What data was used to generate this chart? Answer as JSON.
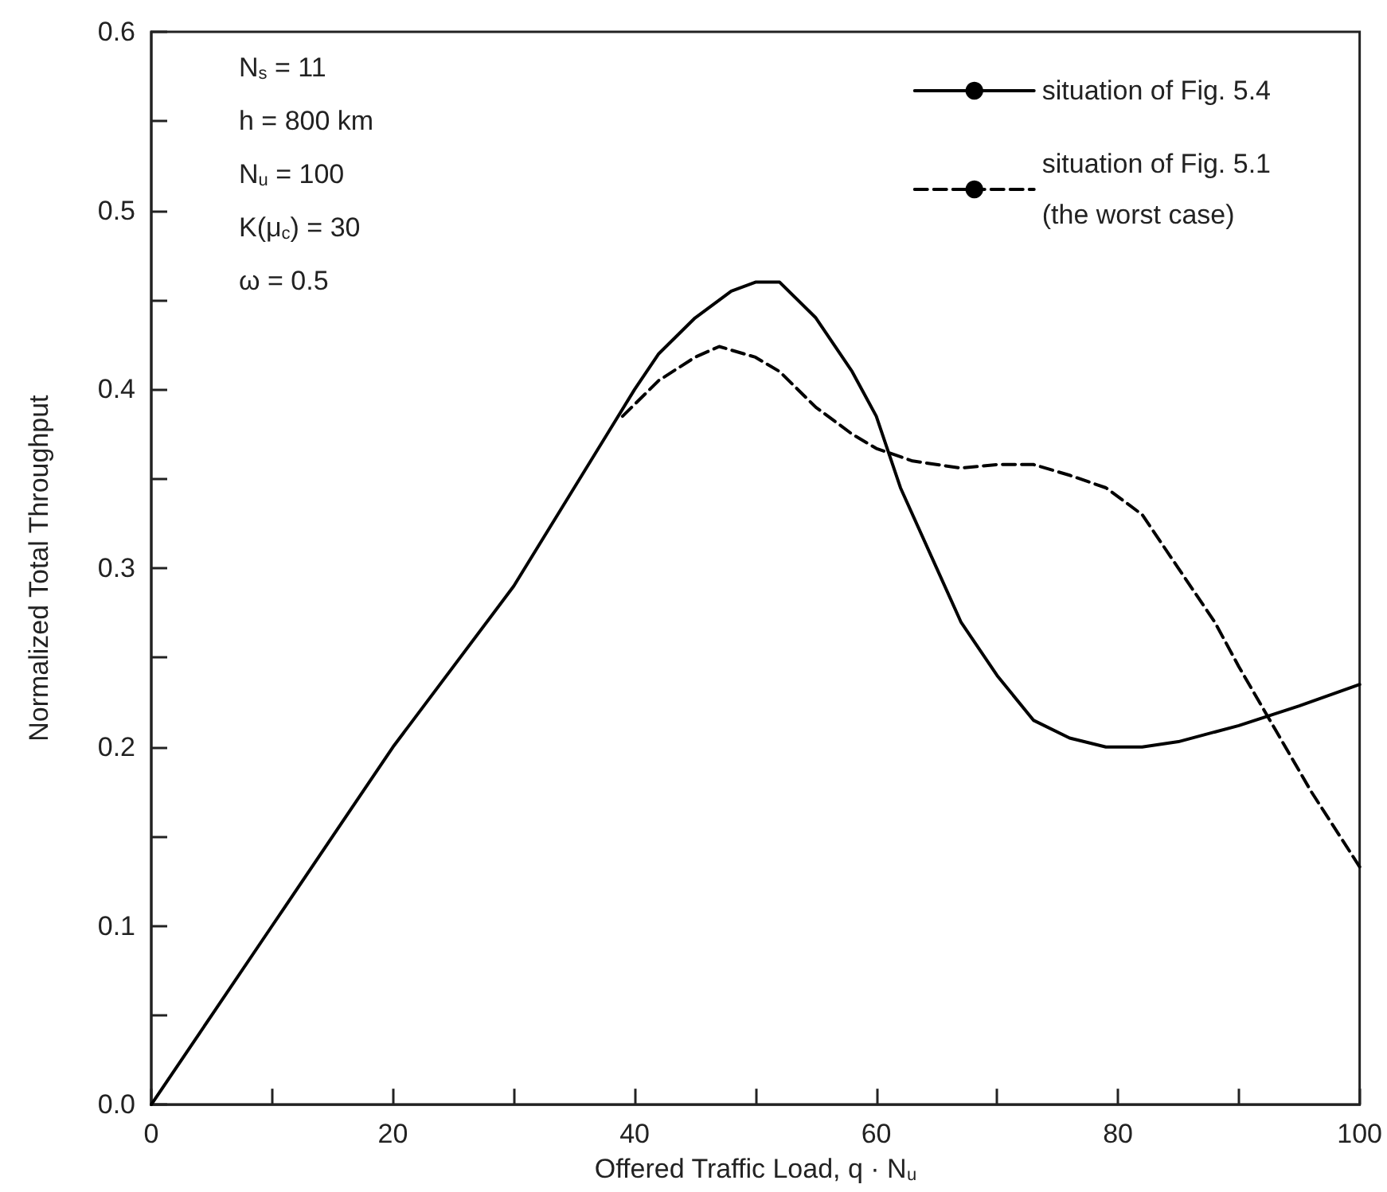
{
  "chart_data": {
    "type": "line",
    "xlabel": "Offered Traffic Load, q · N$_{u}$",
    "ylabel": "Normalized Total Throughput",
    "annotations": [
      "N$_{s}$ = 11",
      "h = 800 km",
      "N$_{u}$ = 100",
      "K(μ$_{c}$) = 30",
      "ω = 0.5"
    ],
    "series": [
      {
        "name": "situation of Fig. 5.4",
        "color": "#000000",
        "line_style": "solid",
        "x": [
          0,
          4,
          10,
          11,
          20,
          30,
          40,
          42,
          45,
          48,
          50,
          52,
          55,
          58,
          60,
          62,
          65,
          67,
          70,
          73,
          76,
          79,
          82,
          85,
          90,
          95,
          100
        ],
        "values": [
          0,
          0.04,
          0.1,
          0.11,
          0.2,
          0.29,
          0.4,
          0.42,
          0.44,
          0.455,
          0.46,
          0.46,
          0.44,
          0.41,
          0.385,
          0.345,
          0.3,
          0.27,
          0.24,
          0.215,
          0.205,
          0.2,
          0.2,
          0.203,
          0.212,
          0.223,
          0.235
        ]
      },
      {
        "name": "situation of Fig. 5.1\n(the worst case)",
        "color": "#000000",
        "line_style": "dashed",
        "x": [
          39,
          42,
          45,
          47,
          50,
          52,
          55,
          58,
          60,
          63,
          67,
          70,
          73,
          76,
          79,
          82,
          85,
          88,
          90,
          93,
          96,
          100
        ],
        "values": [
          0.385,
          0.405,
          0.418,
          0.424,
          0.418,
          0.41,
          0.39,
          0.375,
          0.367,
          0.36,
          0.356,
          0.358,
          0.358,
          0.352,
          0.345,
          0.33,
          0.3,
          0.27,
          0.245,
          0.21,
          0.175,
          0.133
        ]
      }
    ],
    "xlim": [
      0,
      100
    ],
    "xticks": [
      0,
      {
        "value": 10,
        "label": null
      },
      20,
      {
        "value": 30,
        "label": null
      },
      40,
      {
        "value": 50,
        "label": null
      },
      60,
      {
        "value": 70,
        "label": null
      },
      80,
      {
        "value": 90,
        "label": null
      },
      100
    ],
    "ylim": [
      0,
      0.6
    ],
    "yticks": [
      {
        "value": 0,
        "label": "0.0"
      },
      {
        "value": 0.05,
        "label": null
      },
      0.1,
      {
        "value": 0.15,
        "label": null
      },
      0.2,
      {
        "value": 0.25,
        "label": null
      },
      0.3,
      {
        "value": 0.35,
        "label": null
      },
      0.4,
      {
        "value": 0.45,
        "label": null
      },
      0.5,
      {
        "value": 0.55,
        "label": null
      },
      0.6
    ],
    "grid": false,
    "legend": "top right",
    "marker": "none"
  }
}
